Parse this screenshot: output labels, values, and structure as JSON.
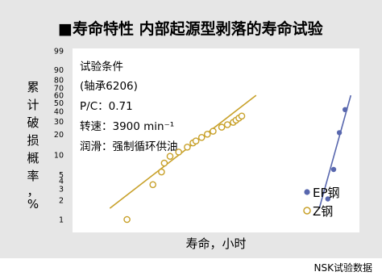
{
  "chart_data": {
    "type": "scatter",
    "title": "■寿命特性 内部起源型剥落的寿命试验",
    "ylabel": [
      "累",
      "计",
      "破",
      "损",
      "概",
      "率",
      "，",
      "%"
    ],
    "xlabel": "寿命，小时",
    "y_scale": "weibull",
    "y_tick_labels": [
      "99",
      "90",
      "80",
      "70",
      "60",
      "50",
      "40",
      "30",
      "20",
      "10",
      "5",
      "4",
      "3",
      "2",
      "1"
    ],
    "y_tick_values": [
      99,
      90,
      80,
      70,
      60,
      50,
      40,
      30,
      20,
      10,
      5,
      4,
      3,
      2,
      1
    ],
    "test_conditions": [
      "试验条件",
      "(轴承6206)",
      "P/C：0.71",
      "转速：3900 min⁻¹",
      "润滑：强制循环供油"
    ],
    "legend_position": "bottom-right",
    "series": [
      {
        "name": "EP钢",
        "color": "#5867ae",
        "marker": "filled-circle",
        "x_rel": [
          0.89,
          0.91,
          0.93,
          0.95
        ],
        "y": [
          2.1,
          6,
          21,
          42
        ]
      },
      {
        "name": "Z钢",
        "color": "#c8a12a",
        "marker": "open-circle",
        "x_rel": [
          0.19,
          0.28,
          0.31,
          0.32,
          0.34,
          0.37,
          0.4,
          0.42,
          0.43,
          0.45,
          0.47,
          0.49,
          0.52,
          0.54,
          0.56,
          0.57,
          0.58,
          0.59
        ],
        "y": [
          1,
          3.5,
          5.5,
          7.5,
          9.5,
          11,
          13,
          15,
          16,
          18,
          20,
          22,
          25,
          27,
          29,
          31,
          33,
          35
        ]
      }
    ],
    "fit_lines": [
      {
        "series": "Z钢",
        "x_rel": [
          0.13,
          0.64
        ],
        "y": [
          1.5,
          60
        ]
      },
      {
        "series": "EP钢",
        "x_rel": [
          0.86,
          0.97
        ],
        "y": [
          1.5,
          60
        ]
      }
    ],
    "source": "NSK试验数据"
  },
  "colors": {
    "panel_bg": "#e6e6e6",
    "plot_bg": "#ffffff",
    "z_steel": "#c8a12a",
    "ep_steel": "#5867ae"
  }
}
